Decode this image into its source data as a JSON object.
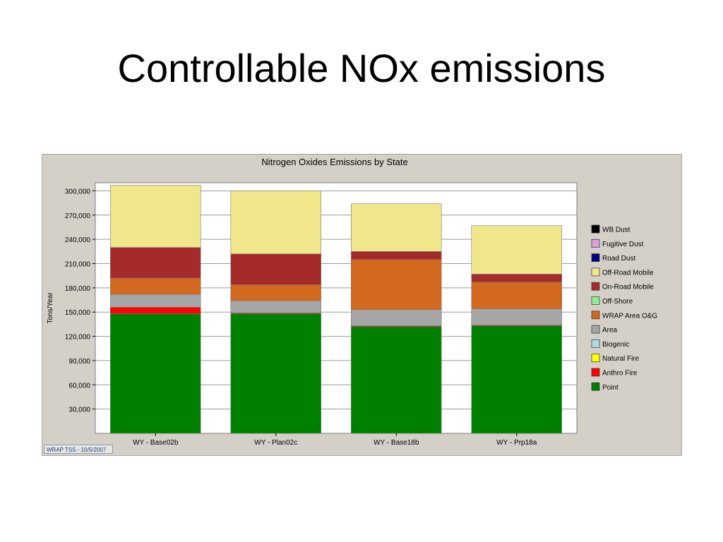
{
  "slide": {
    "title": "Controllable NOx emissions"
  },
  "stamp": {
    "text": "WRAP TSS - 10/5/2007"
  },
  "chart_data": {
    "type": "bar",
    "stacked": true,
    "title": "Nitrogen Oxides Emissions by State",
    "xlabel": "",
    "ylabel": "Tons/Year",
    "ylim": [
      0,
      310000
    ],
    "yticks": [
      30000,
      60000,
      90000,
      120000,
      150000,
      180000,
      210000,
      240000,
      270000,
      300000
    ],
    "ytick_labels": [
      "30,000",
      "60,000",
      "90,000",
      "120,000",
      "150,000",
      "180,000",
      "210,000",
      "240,000",
      "270,000",
      "300,000"
    ],
    "grid": true,
    "legend_position": "right",
    "categories": [
      "WY - Base02b",
      "WY - Plan02c",
      "WY - Base18b",
      "WY - Prp18a"
    ],
    "series": [
      {
        "name": "Point",
        "color": "#008000",
        "values": [
          148000,
          148000,
          132000,
          133000
        ]
      },
      {
        "name": "Anthro Fire",
        "color": "#ff0000",
        "values": [
          8000,
          1000,
          1000,
          1000
        ]
      },
      {
        "name": "Natural Fire",
        "color": "#ffff00",
        "values": [
          0,
          0,
          0,
          0
        ]
      },
      {
        "name": "Biogenic",
        "color": "#add8e6",
        "values": [
          0,
          0,
          0,
          0
        ]
      },
      {
        "name": "Area",
        "color": "#a6a6a6",
        "values": [
          16000,
          15000,
          20000,
          20000
        ]
      },
      {
        "name": "WRAP Area O&G",
        "color": "#d2691e",
        "values": [
          20000,
          20000,
          62000,
          33000
        ]
      },
      {
        "name": "Off-Shore",
        "color": "#90ee90",
        "values": [
          0,
          0,
          0,
          0
        ]
      },
      {
        "name": "On-Road Mobile",
        "color": "#a52a2a",
        "values": [
          38000,
          38000,
          10000,
          10000
        ]
      },
      {
        "name": "Off-Road Mobile",
        "color": "#f0e68c",
        "values": [
          77000,
          78000,
          59000,
          60000
        ]
      },
      {
        "name": "Road Dust",
        "color": "#000080",
        "values": [
          0,
          0,
          0,
          0
        ]
      },
      {
        "name": "Fugitive Dust",
        "color": "#dda0dd",
        "values": [
          0,
          0,
          0,
          0
        ]
      },
      {
        "name": "WB Dust",
        "color": "#000000",
        "values": [
          0,
          0,
          0,
          0
        ]
      }
    ],
    "legend_order": [
      "WB Dust",
      "Fugitive Dust",
      "Road Dust",
      "Off-Road Mobile",
      "On-Road Mobile",
      "Off-Shore",
      "WRAP Area O&G",
      "Area",
      "Biogenic",
      "Natural Fire",
      "Anthro Fire",
      "Point"
    ]
  }
}
